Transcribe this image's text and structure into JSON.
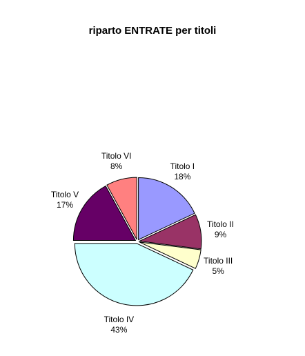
{
  "chart_data": {
    "type": "pie",
    "title": "riparto ENTRATE per titoli",
    "slices": [
      {
        "label": "Titolo I",
        "value": 18,
        "percent_label": "18%",
        "color": "#9999ff"
      },
      {
        "label": "Titolo II",
        "value": 9,
        "percent_label": "9%",
        "color": "#993366"
      },
      {
        "label": "Titolo III",
        "value": 5,
        "percent_label": "5%",
        "color": "#ffffcc"
      },
      {
        "label": "Titolo IV",
        "value": 43,
        "percent_label": "43%",
        "color": "#ccffff"
      },
      {
        "label": "Titolo V",
        "value": 17,
        "percent_label": "17%",
        "color": "#660066"
      },
      {
        "label": "Titolo VI",
        "value": 8,
        "percent_label": "8%",
        "color": "#ff8080"
      }
    ],
    "start_angle_deg": 0,
    "direction": "clockwise",
    "exploded": true,
    "legend": "none"
  }
}
